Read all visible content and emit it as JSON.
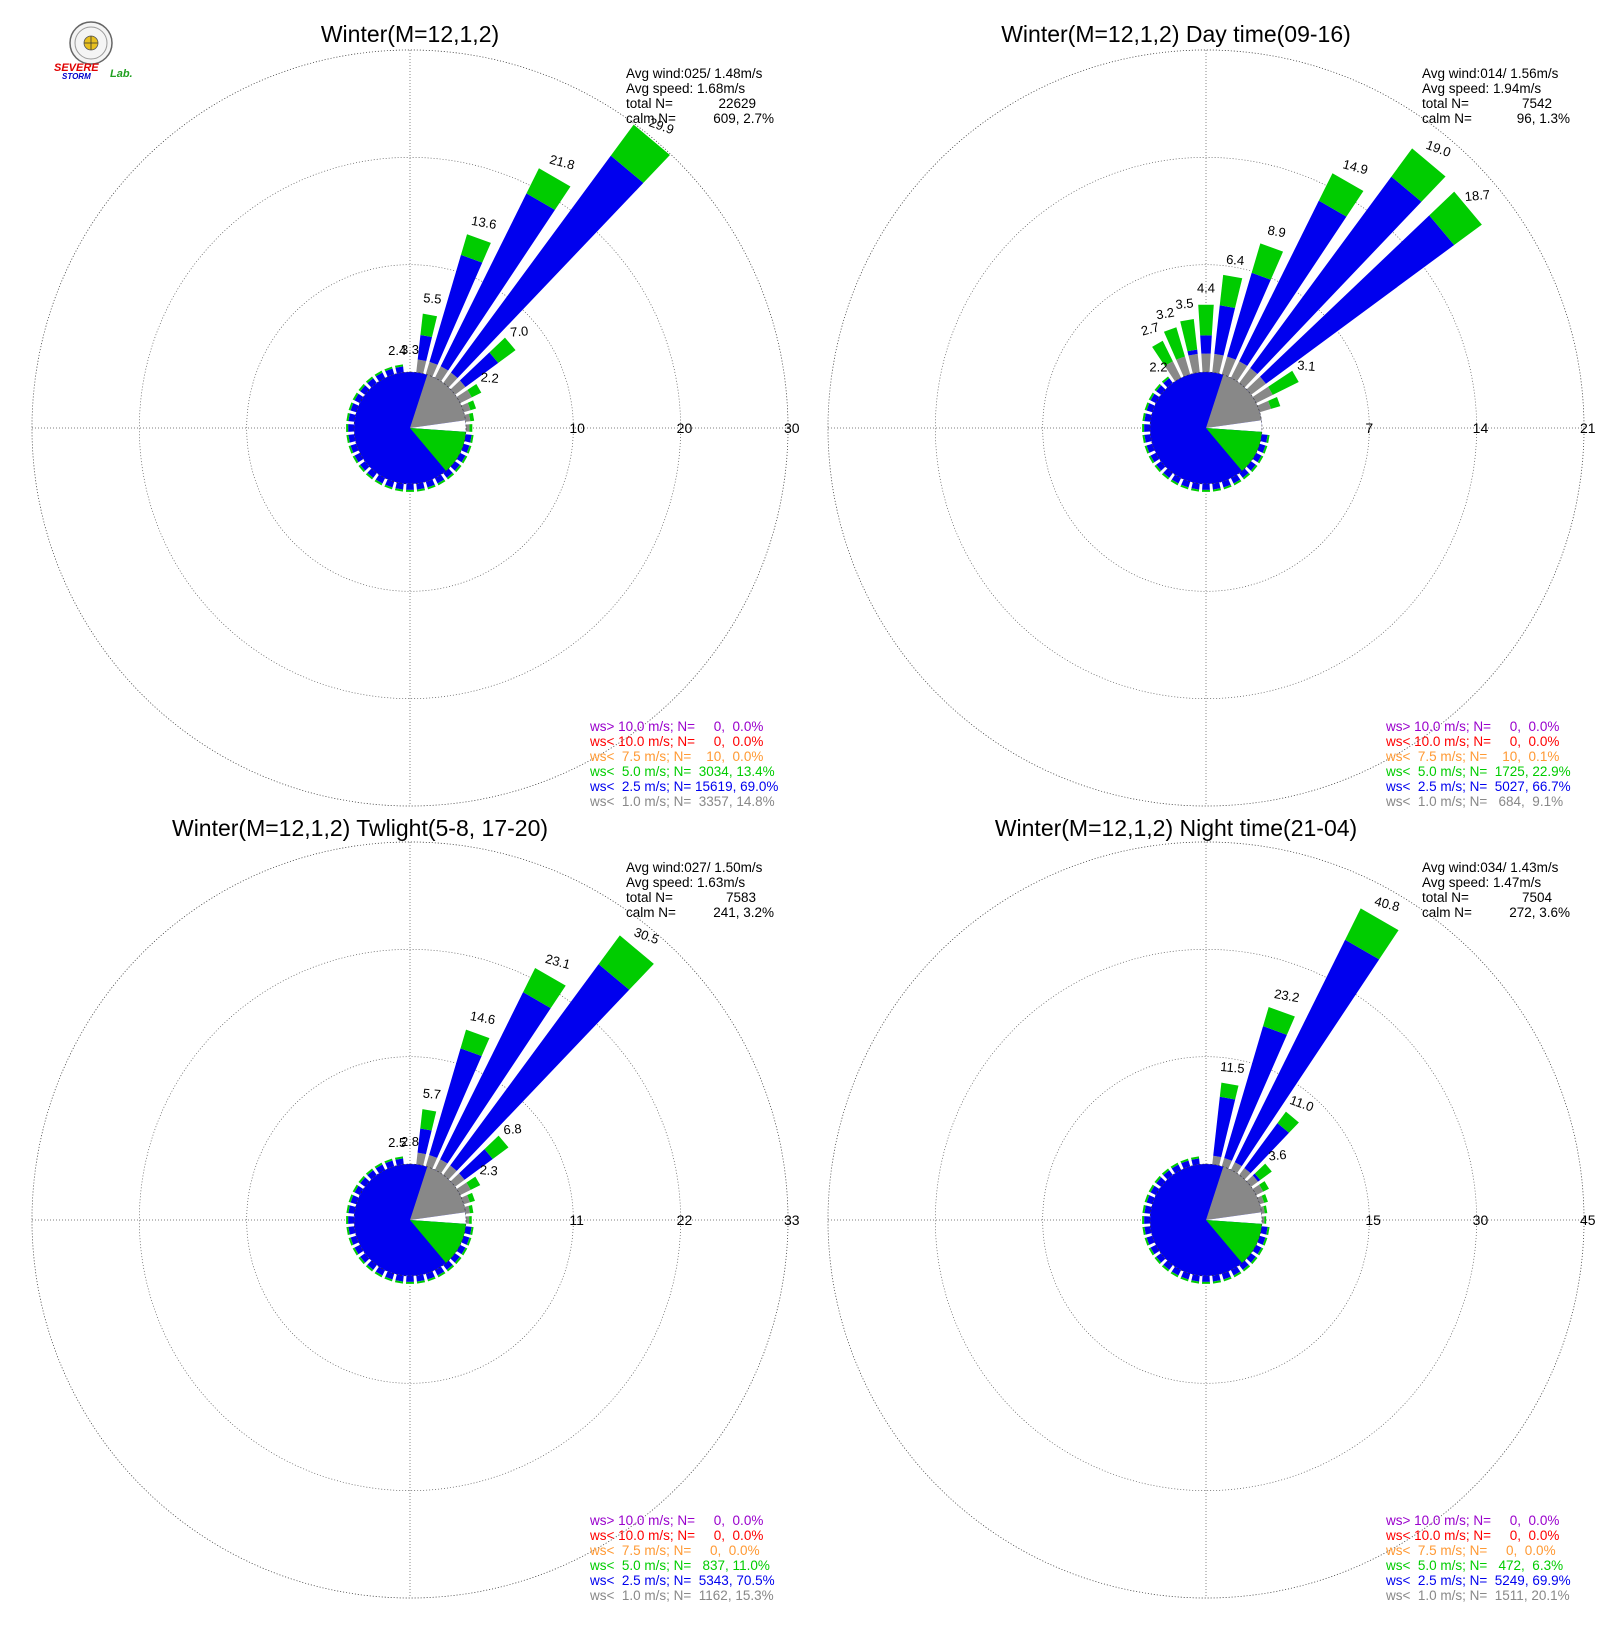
{
  "colors": {
    "c10p": "#9900cc",
    "c10": "#ff0000",
    "c75": "#ff9933",
    "c50": "#00cc00",
    "c25": "#0000ee",
    "c10calm": "#888888"
  },
  "logo": {
    "line1": "SEVERE",
    "line2": "STORM",
    "lab": "Lab.",
    "icon": "university-seal-icon"
  },
  "chart_data": [
    {
      "type": "wind-rose",
      "title": "Winter(M=12,1,2)",
      "stats": {
        "avg_wind": "Avg wind:025/ 1.48m/s",
        "avg_speed": "Avg speed: 1.68m/s",
        "total_label": "total N=",
        "total_value": "22629",
        "calm_label": "calm N=",
        "calm_value": "609,   2.7%"
      },
      "rmax": 30,
      "ring_labels": [
        "10",
        "20",
        "30"
      ],
      "directions_deg": [
        10,
        20,
        30,
        40,
        50,
        60,
        70,
        80,
        90
      ],
      "direction_totals": [
        5.5,
        13.6,
        21.8,
        29.9,
        7.0,
        2.2,
        1.2,
        0.8,
        0.6
      ],
      "direction_labels": [
        "5.5",
        "13.6",
        "21.8",
        "29.9",
        "7.0",
        "2.2",
        "",
        "",
        ""
      ],
      "extra_labels": [
        {
          "deg": -10,
          "text": "2.4"
        },
        {
          "deg": 0,
          "text": "3.3"
        }
      ],
      "legend": [
        {
          "text": "ws> 10.0 m/s; N=     0,  0.0%",
          "color": "#9900cc"
        },
        {
          "text": "ws< 10.0 m/s; N=     0,  0.0%",
          "color": "#ff0000"
        },
        {
          "text": "ws<  7.5 m/s; N=    10,  0.0%",
          "color": "#ff9933"
        },
        {
          "text": "ws<  5.0 m/s; N=  3034, 13.4%",
          "color": "#00cc00"
        },
        {
          "text": "ws<  2.5 m/s; N= 15619, 69.0%",
          "color": "#0000ee"
        },
        {
          "text": "ws<  1.0 m/s; N=  3357, 14.8%",
          "color": "#888888"
        }
      ]
    },
    {
      "type": "wind-rose",
      "title": "Winter(M=12,1,2) Day time(09-16)",
      "stats": {
        "avg_wind": "Avg wind:014/ 1.56m/s",
        "avg_speed": "Avg speed: 1.94m/s",
        "total_label": "total N=",
        "total_value": "7542",
        "calm_label": "calm N=",
        "calm_value": "96,   1.3%"
      },
      "rmax": 21,
      "ring_labels": [
        "7",
        "14",
        "21"
      ],
      "directions_deg": [
        -30,
        -20,
        -10,
        0,
        10,
        20,
        30,
        40,
        50,
        60,
        70
      ],
      "direction_totals": [
        2.7,
        3.2,
        3.5,
        4.4,
        6.4,
        8.9,
        14.9,
        19.0,
        18.7,
        3.1,
        1.4
      ],
      "direction_labels": [
        "2.7",
        "3.2",
        "3.5",
        "4.4",
        "6.4",
        "8.9",
        "14.9",
        "19.0",
        "18.7",
        "3.1",
        ""
      ],
      "extra_labels": [
        {
          "deg": -40,
          "text": "2.2"
        }
      ],
      "legend": [
        {
          "text": "ws> 10.0 m/s; N=     0,  0.0%",
          "color": "#9900cc"
        },
        {
          "text": "ws< 10.0 m/s; N=     0,  0.0%",
          "color": "#ff0000"
        },
        {
          "text": "ws<  7.5 m/s; N=    10,  0.1%",
          "color": "#ff9933"
        },
        {
          "text": "ws<  5.0 m/s; N=  1725, 22.9%",
          "color": "#00cc00"
        },
        {
          "text": "ws<  2.5 m/s; N=  5027, 66.7%",
          "color": "#0000ee"
        },
        {
          "text": "ws<  1.0 m/s; N=   684,  9.1%",
          "color": "#888888"
        }
      ]
    },
    {
      "type": "wind-rose",
      "title": "Winter(M=12,1,2) Twlight(5-8, 17-20)",
      "stats": {
        "avg_wind": "Avg wind:027/ 1.50m/s",
        "avg_speed": "Avg speed: 1.63m/s",
        "total_label": "total N=",
        "total_value": "7583",
        "calm_label": "calm N=",
        "calm_value": "241,   3.2%"
      },
      "rmax": 33,
      "ring_labels": [
        "11",
        "22",
        "33"
      ],
      "directions_deg": [
        10,
        20,
        30,
        40,
        50,
        60,
        70,
        80,
        90
      ],
      "direction_totals": [
        5.7,
        14.6,
        23.1,
        30.5,
        6.8,
        2.3,
        1.2,
        0.8,
        0.6
      ],
      "direction_labels": [
        "5.7",
        "14.6",
        "23.1",
        "30.5",
        "6.8",
        "2.3",
        "",
        "",
        ""
      ],
      "extra_labels": [
        {
          "deg": -10,
          "text": "2.5"
        },
        {
          "deg": 0,
          "text": "2.8"
        }
      ],
      "legend": [
        {
          "text": "ws> 10.0 m/s; N=     0,  0.0%",
          "color": "#9900cc"
        },
        {
          "text": "ws< 10.0 m/s; N=     0,  0.0%",
          "color": "#ff0000"
        },
        {
          "text": "ws<  7.5 m/s; N=     0,  0.0%",
          "color": "#ff9933"
        },
        {
          "text": "ws<  5.0 m/s; N=   837, 11.0%",
          "color": "#00cc00"
        },
        {
          "text": "ws<  2.5 m/s; N=  5343, 70.5%",
          "color": "#0000ee"
        },
        {
          "text": "ws<  1.0 m/s; N=  1162, 15.3%",
          "color": "#888888"
        }
      ]
    },
    {
      "type": "wind-rose",
      "title": "Winter(M=12,1,2) Night time(21-04)",
      "stats": {
        "avg_wind": "Avg wind:034/ 1.43m/s",
        "avg_speed": "Avg speed: 1.47m/s",
        "total_label": "total N=",
        "total_value": "7504",
        "calm_label": "calm N=",
        "calm_value": "272,   3.6%"
      },
      "rmax": 45,
      "ring_labels": [
        "15",
        "30",
        "45"
      ],
      "directions_deg": [
        10,
        20,
        30,
        40,
        50,
        60,
        70,
        80,
        90
      ],
      "direction_totals": [
        11.5,
        23.2,
        40.8,
        11.0,
        3.6,
        2.0,
        1.2,
        0.8,
        0.6
      ],
      "direction_labels": [
        "11.5",
        "23.2",
        "40.8",
        "11.0",
        "3.6",
        "",
        "",
        "",
        ""
      ],
      "extra_labels": [],
      "legend": [
        {
          "text": "ws> 10.0 m/s; N=     0,  0.0%",
          "color": "#9900cc"
        },
        {
          "text": "ws< 10.0 m/s; N=     0,  0.0%",
          "color": "#ff0000"
        },
        {
          "text": "ws<  7.5 m/s; N=     0,  0.0%",
          "color": "#ff9933"
        },
        {
          "text": "ws<  5.0 m/s; N=   472,  6.3%",
          "color": "#00cc00"
        },
        {
          "text": "ws<  2.5 m/s; N=  5249, 69.9%",
          "color": "#0000ee"
        },
        {
          "text": "ws<  1.0 m/s; N=  1511, 20.1%",
          "color": "#888888"
        }
      ]
    }
  ]
}
